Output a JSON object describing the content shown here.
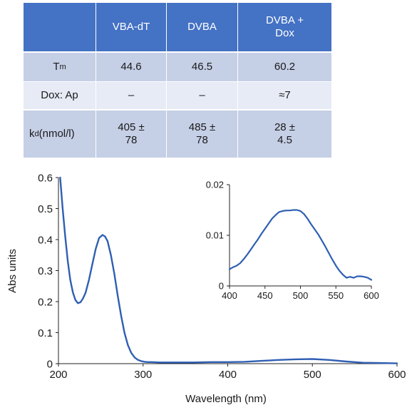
{
  "table": {
    "headers": [
      "",
      "VBA-dT",
      "DVBA",
      "DVBA + Dox"
    ],
    "rows": [
      {
        "label_main": "T",
        "label_sub": "m",
        "label_suffix": "",
        "values": [
          "44.6",
          "46.5",
          "60.2"
        ]
      },
      {
        "label_main": "Dox: Ap",
        "label_sub": "",
        "label_suffix": "",
        "values": [
          "–",
          "–",
          "≈7"
        ]
      },
      {
        "label_main": "k",
        "label_sub": "d",
        "label_suffix": " (nmol/l)",
        "values": [
          "405 ± 78",
          "485 ± 78",
          "28 ± 4.5"
        ]
      }
    ]
  },
  "colors": {
    "header": "#4472c4",
    "row_dark": "#c5cfe6",
    "row_light": "#e6ebf5",
    "line": "#2f5fb3"
  },
  "chart_data": [
    {
      "type": "line",
      "xlabel": "Wavelength (nm)",
      "ylabel": "Abs units",
      "xlim": [
        200,
        600
      ],
      "ylim": [
        0,
        0.6
      ],
      "xticks": [
        200,
        300,
        400,
        500,
        600
      ],
      "yticks": [
        0,
        0.1,
        0.2,
        0.3,
        0.4,
        0.5,
        0.6
      ],
      "ytick_labels": [
        "0",
        "0.1",
        "0.2",
        "0.3",
        "0.4",
        "0.5",
        "0.6"
      ],
      "grid": false,
      "series": [
        {
          "x": [
            202,
            205,
            208,
            211,
            214,
            217,
            220,
            223,
            226,
            229,
            232,
            236,
            240,
            244,
            248,
            252,
            255,
            258,
            262,
            266,
            270,
            274,
            278,
            282,
            286,
            290,
            294,
            298,
            302,
            306,
            310,
            320,
            340,
            360,
            380,
            400,
            420,
            440,
            460,
            480,
            500,
            520,
            540,
            560,
            580,
            600
          ],
          "y": [
            0.6,
            0.5,
            0.41,
            0.33,
            0.27,
            0.23,
            0.205,
            0.195,
            0.198,
            0.21,
            0.228,
            0.27,
            0.32,
            0.37,
            0.405,
            0.415,
            0.41,
            0.395,
            0.35,
            0.29,
            0.22,
            0.155,
            0.1,
            0.06,
            0.035,
            0.02,
            0.012,
            0.008,
            0.006,
            0.005,
            0.005,
            0.004,
            0.004,
            0.004,
            0.005,
            0.005,
            0.006,
            0.009,
            0.012,
            0.014,
            0.015,
            0.012,
            0.007,
            0.003,
            0.002,
            0.001
          ]
        }
      ]
    },
    {
      "type": "line",
      "xlim": [
        400,
        600
      ],
      "ylim": [
        0,
        0.02
      ],
      "xticks": [
        400,
        450,
        500,
        550,
        600
      ],
      "yticks": [
        0,
        0.01,
        0.02
      ],
      "ytick_labels": [
        "0",
        "0.01",
        "0.02"
      ],
      "grid": false,
      "series": [
        {
          "x": [
            400,
            405,
            410,
            415,
            420,
            425,
            430,
            435,
            440,
            445,
            450,
            455,
            460,
            465,
            470,
            475,
            480,
            485,
            490,
            495,
            500,
            505,
            510,
            515,
            520,
            525,
            530,
            535,
            540,
            545,
            550,
            555,
            560,
            565,
            570,
            575,
            580,
            585,
            590,
            595,
            600
          ],
          "y": [
            0.0033,
            0.0037,
            0.004,
            0.0045,
            0.0053,
            0.0062,
            0.0072,
            0.0082,
            0.0092,
            0.0103,
            0.0113,
            0.0123,
            0.0133,
            0.014,
            0.0146,
            0.0148,
            0.0149,
            0.0149,
            0.015,
            0.015,
            0.0148,
            0.0142,
            0.0133,
            0.0122,
            0.0112,
            0.0102,
            0.009,
            0.0078,
            0.0065,
            0.0052,
            0.004,
            0.003,
            0.0022,
            0.0016,
            0.0018,
            0.0016,
            0.0019,
            0.0019,
            0.0018,
            0.0016,
            0.0012
          ]
        }
      ]
    }
  ]
}
